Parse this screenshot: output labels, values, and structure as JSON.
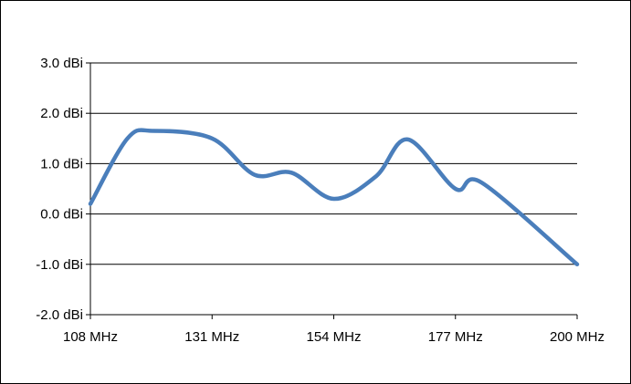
{
  "chart_data": {
    "type": "line",
    "title": "",
    "xlabel": "",
    "ylabel": "",
    "x_tick_labels": [
      "108 MHz",
      "131 MHz",
      "154 MHz",
      "177 MHz",
      "200 MHz"
    ],
    "x_ticks": [
      108,
      131,
      154,
      177,
      200
    ],
    "y_tick_labels": [
      "3.0 dBi",
      "2.0 dBi",
      "1.0 dBi",
      "0.0 dBi",
      "-1.0 dBi",
      "-2.0 dBi"
    ],
    "y_ticks": [
      3,
      2,
      1,
      0,
      -1,
      -2
    ],
    "xlim": [
      108,
      200
    ],
    "ylim": [
      -2,
      3
    ],
    "grid": "horizontal",
    "legend": "none",
    "series": [
      {
        "name": "",
        "color": "#4a7ebb",
        "x": [
          108,
          115,
          120,
          131,
          139,
          146,
          154,
          162,
          168,
          177,
          182,
          200
        ],
        "y": [
          0.2,
          1.5,
          1.65,
          1.5,
          0.78,
          0.82,
          0.3,
          0.75,
          1.48,
          0.5,
          0.62,
          -1.0
        ]
      }
    ]
  }
}
